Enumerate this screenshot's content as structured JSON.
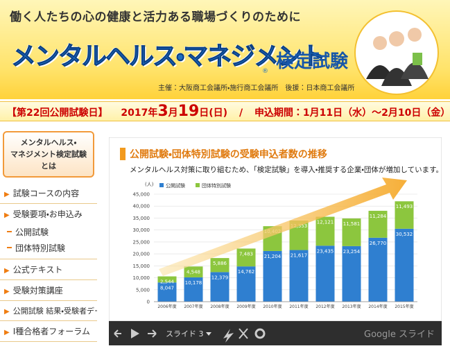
{
  "header": {
    "tagline": "働く人たちの心の健康と活力ある職場づくりのために",
    "title": "メンタルヘルス・マネジメント",
    "registered": "®",
    "title_suffix": "検定試験",
    "organizers": "主催：大阪商工会議所・施行商工会議所　後援：日本商工会議所"
  },
  "date_bar": {
    "label": "【第22回公開試験日】",
    "year": "2017年",
    "month": "3",
    "month_unit": "月",
    "day": "19",
    "day_unit": "日",
    "weekday": "(日)",
    "separator": "/",
    "application": "申込期間：1月11日（水）～2月10日（金）"
  },
  "nav": {
    "feature_lines": [
      "メンタルヘルス・",
      "マネジメント検定試験とは"
    ],
    "items": [
      "試験コースの内容",
      "受験要項・お申込み",
      "公式テキスト",
      "受験対策講座",
      "公開試験 結果・受験者データ",
      "Ⅰ種合格者フォーラム"
    ],
    "subitems": [
      "公開試験",
      "団体特別試験"
    ]
  },
  "chart_data": {
    "type": "bar",
    "stacked": true,
    "title": "公開試験・団体特別試験の受験申込者数の推移",
    "subtitle": "メンタルヘルス対策に取り組むため、「検定試験」を導入・推奨する企業・団体が増加しています。",
    "y_unit": "(人)",
    "categories": [
      "2006年度",
      "2007年度",
      "2008年度",
      "2009年度",
      "2010年度",
      "2011年度",
      "2012年度",
      "2013年度",
      "2014年度",
      "2015年度"
    ],
    "series": [
      {
        "name": "公開試験",
        "color": "#2f7fd0",
        "values": [
          8047,
          10178,
          12379,
          14762,
          21204,
          21617,
          23435,
          23254,
          26770,
          30532
        ],
        "value_labels": [
          "8,047",
          "10,178",
          "12,379",
          "14,762",
          "21,204",
          "21,617",
          "23,435",
          "23,254",
          "26,770",
          "30,532"
        ]
      },
      {
        "name": "団体特別試験",
        "color": "#8cc63e",
        "values": [
          2544,
          4548,
          5886,
          7483,
          10402,
          12353,
          12121,
          11581,
          11284,
          11493
        ],
        "value_labels": [
          "2,544",
          "4,548",
          "5,886",
          "7,483",
          "10,402",
          "12,353",
          "12,121",
          "11,581",
          "11,284",
          "11,493"
        ]
      }
    ],
    "ylim": [
      0,
      45000
    ],
    "yticks": [
      0,
      {
        "value": 5000,
        "label": "5,000"
      },
      {
        "value": 10000,
        "label": "10,000"
      },
      {
        "value": 15000,
        "label": "15,000"
      },
      {
        "value": 20000,
        "label": "20,000"
      },
      {
        "value": 25000,
        "label": "25,000"
      },
      {
        "value": 30000,
        "label": "30,000"
      },
      {
        "value": 35000,
        "label": "35,000"
      },
      {
        "value": 40000,
        "label": "40,000"
      },
      {
        "value": 45000,
        "label": "45,000"
      }
    ],
    "grid": true
  },
  "slide_controls": {
    "slide_label": "スライド 3",
    "brand": "Google スライド"
  }
}
